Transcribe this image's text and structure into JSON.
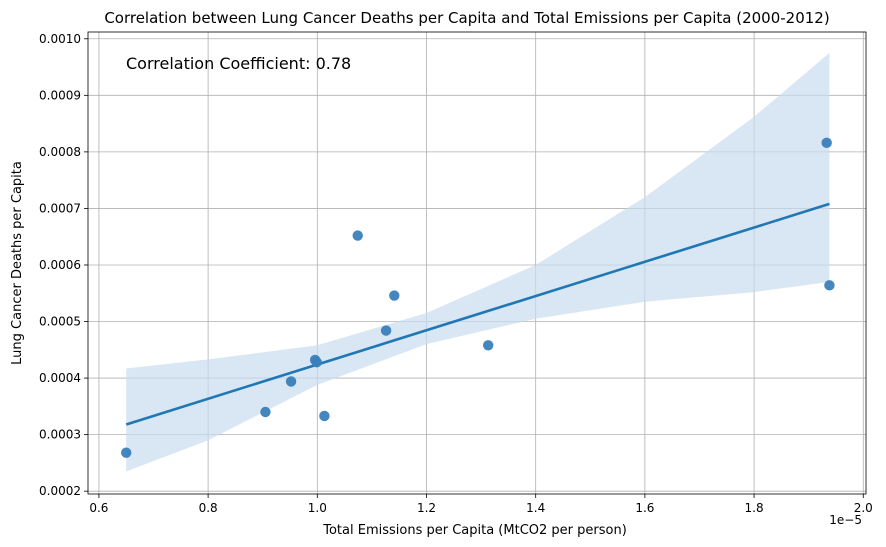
{
  "chart_data": {
    "type": "scatter",
    "title": "Correlation between Lung Cancer Deaths per Capita and Total Emissions per Capita (2000-2012)",
    "xlabel": "Total Emissions per Capita (MtCO2 per person)",
    "ylabel": "Lung Cancer Deaths per Capita",
    "x_offset_label": "1e−5",
    "annotation": "Correlation Coefficient: 0.78",
    "grid": true,
    "xlim": [
      0.58,
      2.005
    ],
    "ylim": [
      0.000195,
      0.001012
    ],
    "xticks": [
      0.6,
      0.8,
      1.0,
      1.2,
      1.4,
      1.6,
      1.8,
      2.0
    ],
    "xtick_labels": [
      "0.6",
      "0.8",
      "1.0",
      "1.2",
      "1.4",
      "1.6",
      "1.8",
      "2.0"
    ],
    "yticks": [
      0.0002,
      0.0003,
      0.0004,
      0.0005,
      0.0006,
      0.0007,
      0.0008,
      0.0009,
      0.001
    ],
    "ytick_labels": [
      "0.0002",
      "0.0003",
      "0.0004",
      "0.0005",
      "0.0006",
      "0.0007",
      "0.0008",
      "0.0009",
      "0.0010"
    ],
    "points": [
      {
        "x": 0.65,
        "y": 0.000268
      },
      {
        "x": 0.905,
        "y": 0.00034
      },
      {
        "x": 0.952,
        "y": 0.000394
      },
      {
        "x": 0.996,
        "y": 0.000432
      },
      {
        "x": 0.999,
        "y": 0.000428
      },
      {
        "x": 1.013,
        "y": 0.000333
      },
      {
        "x": 1.074,
        "y": 0.000652
      },
      {
        "x": 1.126,
        "y": 0.000484
      },
      {
        "x": 1.141,
        "y": 0.000546
      },
      {
        "x": 1.313,
        "y": 0.000458
      },
      {
        "x": 1.933,
        "y": 0.000816
      },
      {
        "x": 1.938,
        "y": 0.000564
      }
    ],
    "regression_line": {
      "x": [
        0.65,
        1.938
      ],
      "y": [
        0.000318,
        0.000708
      ]
    },
    "confidence_band": {
      "x": [
        0.65,
        0.8,
        1.0,
        1.2,
        1.4,
        1.6,
        1.8,
        1.938
      ],
      "upper": [
        0.000417,
        0.000433,
        0.000458,
        0.000515,
        0.0006,
        0.00072,
        0.000862,
        0.000975
      ],
      "lower": [
        0.000235,
        0.00029,
        0.000388,
        0.00046,
        0.000505,
        0.000535,
        0.000552,
        0.00057
      ]
    },
    "colors": {
      "points": "#3a80ba",
      "line": "#1f77b4",
      "band": "#c9dcee",
      "grid": "#b0b0b0"
    }
  }
}
